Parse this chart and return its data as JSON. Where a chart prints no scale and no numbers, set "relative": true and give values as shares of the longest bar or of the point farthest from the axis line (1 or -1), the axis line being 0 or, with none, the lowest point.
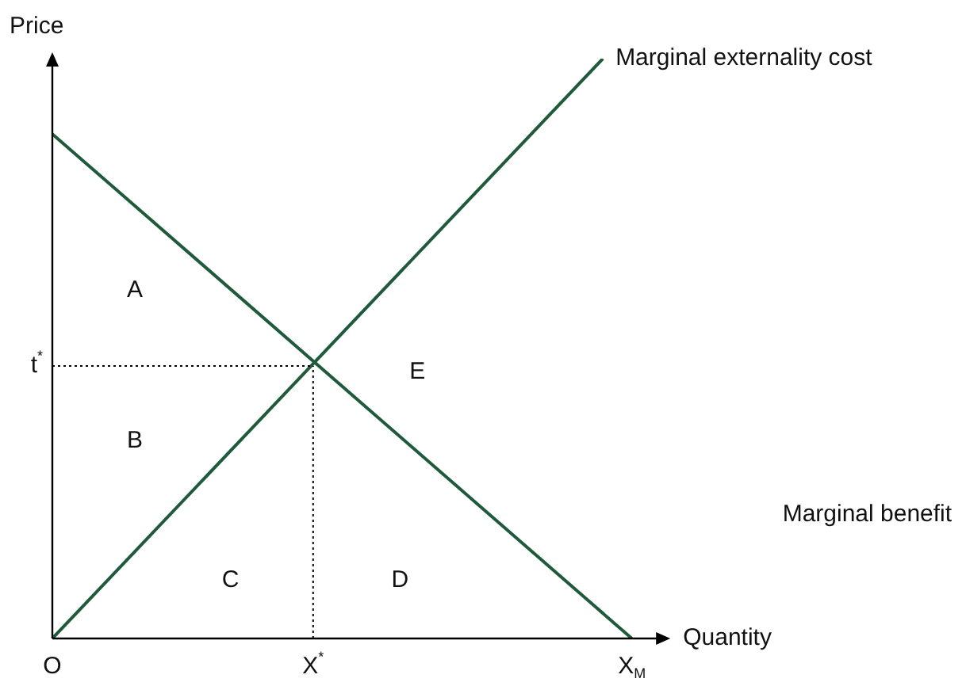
{
  "chart_data": {
    "type": "line",
    "relative": true,
    "xlabel": "Quantity",
    "ylabel": "Price",
    "categories": [
      "O",
      null,
      null,
      null,
      null,
      null,
      null,
      null,
      null,
      "X$^{*}$",
      null,
      null,
      null,
      null,
      null,
      null,
      null,
      null,
      null,
      null,
      "X$_{M}$",
      null,
      null,
      null,
      null,
      null,
      null,
      null,
      null,
      null,
      null
    ],
    "series": [
      {
        "name": "Marginal externality cost",
        "color": "#1f5a3c",
        "values": [
          0,
          null,
          null,
          null,
          null,
          null,
          null,
          null,
          null,
          null,
          null,
          null,
          null,
          null,
          null,
          null,
          null,
          null,
          null,
          1,
          null,
          null,
          null,
          null,
          null,
          null,
          null,
          null,
          null,
          null,
          null
        ]
      },
      {
        "name": "Marginal benefit",
        "color": "#1f5a3c",
        "values": [
          0.87,
          null,
          null,
          null,
          null,
          null,
          null,
          null,
          null,
          null,
          null,
          null,
          null,
          null,
          null,
          null,
          null,
          null,
          null,
          null,
          0,
          null,
          null,
          null,
          null,
          null,
          null,
          null,
          null,
          null,
          null
        ]
      }
    ],
    "ref_lines": [
      {
        "axis": "y",
        "value": 0.47,
        "label": "t$^{*}$",
        "color": "#000000",
        "line_style": "dotted"
      },
      {
        "axis": "x",
        "value": "X$^{*}$",
        "color": "#000000",
        "line_style": "dotted"
      }
    ],
    "annotations": [
      "A",
      "B",
      "C",
      "D",
      "E"
    ],
    "legend": false,
    "marker": "none",
    "line_style": "solid"
  }
}
